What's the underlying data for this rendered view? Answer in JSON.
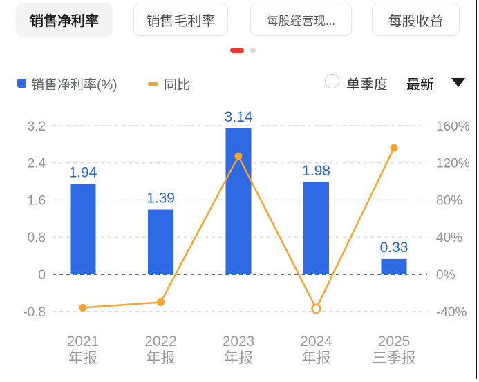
{
  "tabs": [
    {
      "label": "销售净利率",
      "active": true
    },
    {
      "label": "销售毛利率",
      "active": false
    },
    {
      "label": "每股经营现...",
      "active": false
    },
    {
      "label": "每股收益",
      "active": false
    }
  ],
  "pagination": {
    "total_dots": 2,
    "active_index": 0,
    "active_color": "#e83a30",
    "inactive_color": "#d9d9d9"
  },
  "legend": [
    {
      "label": "销售净利率(%)",
      "swatch": "square",
      "color": "#2e6ae4"
    },
    {
      "label": "同比",
      "swatch": "dash",
      "color": "#f6a42c"
    }
  ],
  "controls": {
    "radio_label": "单季度",
    "radio_checked": false,
    "dropdown_value": "最新",
    "caret_icon": "caret-down"
  },
  "colors": {
    "bar": "#2e6ae4",
    "bar_label": "#2263d8",
    "line": "#f6a42c",
    "grid": "#dfdfdf",
    "zero_line": "#6a6a6a",
    "axis_text": "#939393"
  },
  "chart_data": {
    "type": "bar",
    "subtype": "bar+line combo, dual axis",
    "categories": [
      {
        "year": "2021",
        "period": "年报"
      },
      {
        "year": "2022",
        "period": "年报"
      },
      {
        "year": "2023",
        "period": "年报"
      },
      {
        "year": "2024",
        "period": "年报"
      },
      {
        "year": "2025",
        "period": "三季报"
      }
    ],
    "series": [
      {
        "name": "销售净利率(%)",
        "type": "bar",
        "axis": "left",
        "values": [
          1.94,
          1.39,
          3.14,
          1.98,
          0.33
        ],
        "labels": [
          "1.94",
          "1.39",
          "3.14",
          "1.98",
          "0.33"
        ]
      },
      {
        "name": "同比",
        "type": "line",
        "axis": "right",
        "values": [
          -36,
          -30,
          127,
          -37,
          136
        ],
        "hollow_points": [
          3
        ]
      }
    ],
    "left_axis": {
      "ticks": [
        3.2,
        2.4,
        1.6,
        0.8,
        0,
        -0.8
      ],
      "labels": [
        "3.2",
        "2.4",
        "1.6",
        "0.8",
        "0",
        "-0.8"
      ],
      "range": [
        -0.8,
        3.2
      ]
    },
    "right_axis": {
      "ticks": [
        160,
        120,
        80,
        40,
        0,
        -40
      ],
      "labels": [
        "160%",
        "120%",
        "80%",
        "40%",
        "0%",
        "-40%"
      ],
      "range": [
        -40,
        160
      ]
    },
    "grid": "dashed horizontal",
    "legend_position": "top-left"
  }
}
